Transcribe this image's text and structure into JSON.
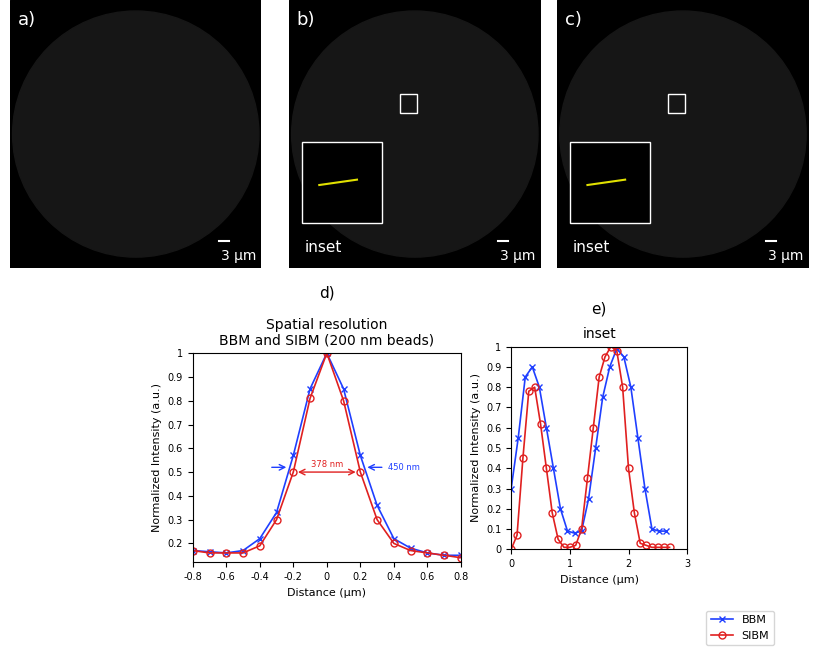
{
  "panels": [
    {
      "label": "a)",
      "scale_bar": "3 μm"
    },
    {
      "label": "b)",
      "scale_bar": "3 μm",
      "inset": "inset"
    },
    {
      "label": "c)",
      "scale_bar": "3 μm",
      "inset": "inset"
    }
  ],
  "chart_data": [
    {
      "type": "line",
      "panel": "d)",
      "title": "Spatial resolution\nBBM and SIBM (200 nm beads)",
      "x_label": "Distance (μm)",
      "y_label": "Normalized Intensity (a.u.)",
      "xlim": [
        -0.8,
        0.8
      ],
      "xticks": [
        -0.8,
        -0.6,
        -0.4,
        -0.2,
        0,
        0.2,
        0.4,
        0.6,
        0.8
      ],
      "ylim": [
        0.12,
        1
      ],
      "yticks": [
        0.2,
        0.3,
        0.4,
        0.5,
        0.6,
        0.7,
        0.8,
        0.9,
        1
      ],
      "series": [
        {
          "name": "BBM",
          "color": "#1f3fff",
          "marker": "x",
          "x": [
            -0.8,
            -0.7,
            -0.6,
            -0.5,
            -0.4,
            -0.3,
            -0.2,
            -0.1,
            0,
            0.1,
            0.2,
            0.3,
            0.4,
            0.5,
            0.6,
            0.7,
            0.8
          ],
          "values": [
            0.17,
            0.165,
            0.16,
            0.17,
            0.22,
            0.33,
            0.57,
            0.85,
            1.0,
            0.85,
            0.57,
            0.36,
            0.22,
            0.18,
            0.16,
            0.15,
            0.15
          ]
        },
        {
          "name": "SIBM",
          "color": "#e02020",
          "marker": "circle",
          "x": [
            -0.8,
            -0.7,
            -0.6,
            -0.5,
            -0.4,
            -0.3,
            -0.2,
            -0.1,
            0,
            0.1,
            0.2,
            0.3,
            0.4,
            0.5,
            0.6,
            0.7,
            0.8
          ],
          "values": [
            0.17,
            0.16,
            0.16,
            0.16,
            0.19,
            0.3,
            0.5,
            0.81,
            1.0,
            0.8,
            0.5,
            0.3,
            0.2,
            0.17,
            0.16,
            0.15,
            0.14
          ]
        }
      ],
      "annotations": [
        {
          "text": "378 nm",
          "color": "#e02020",
          "x": [
            -0.189,
            0.189
          ],
          "y": 0.5
        },
        {
          "text": "450 nm",
          "color": "#1f3fff",
          "x": [
            -0.225,
            0.225
          ],
          "y": 0.52
        }
      ]
    },
    {
      "type": "line",
      "panel": "e)",
      "title": "inset",
      "x_label": "Distance (μm)",
      "y_label": "Normalized Intensity (a.u.)",
      "xlim": [
        0,
        3
      ],
      "xticks": [
        0,
        1,
        2,
        3
      ],
      "ylim": [
        0,
        1
      ],
      "yticks": [
        0,
        0.1,
        0.2,
        0.3,
        0.4,
        0.5,
        0.6,
        0.7,
        0.8,
        0.9,
        1
      ],
      "legend": "lower right",
      "series": [
        {
          "name": "BBM",
          "color": "#1f3fff",
          "marker": "x",
          "x": [
            0,
            0.12,
            0.24,
            0.36,
            0.48,
            0.6,
            0.72,
            0.84,
            0.96,
            1.08,
            1.2,
            1.32,
            1.44,
            1.56,
            1.68,
            1.8,
            1.92,
            2.04,
            2.16,
            2.28,
            2.4,
            2.52,
            2.64
          ],
          "values": [
            0.3,
            0.55,
            0.85,
            0.9,
            0.8,
            0.6,
            0.4,
            0.2,
            0.09,
            0.08,
            0.09,
            0.25,
            0.5,
            0.75,
            0.9,
            0.99,
            0.95,
            0.8,
            0.55,
            0.3,
            0.1,
            0.09,
            0.09
          ]
        },
        {
          "name": "SIBM",
          "color": "#e02020",
          "marker": "circle",
          "x": [
            0,
            0.1,
            0.2,
            0.3,
            0.4,
            0.5,
            0.6,
            0.7,
            0.8,
            0.9,
            1.0,
            1.1,
            1.2,
            1.3,
            1.4,
            1.5,
            1.6,
            1.7,
            1.8,
            1.9,
            2.0,
            2.1,
            2.2,
            2.3,
            2.4,
            2.5,
            2.6,
            2.7
          ],
          "values": [
            0.0,
            0.07,
            0.45,
            0.78,
            0.8,
            0.62,
            0.4,
            0.18,
            0.05,
            0.01,
            0.01,
            0.02,
            0.1,
            0.35,
            0.6,
            0.85,
            0.95,
            1.0,
            0.98,
            0.8,
            0.4,
            0.18,
            0.03,
            0.02,
            0.01,
            0.01,
            0.01,
            0.01
          ]
        }
      ]
    }
  ]
}
